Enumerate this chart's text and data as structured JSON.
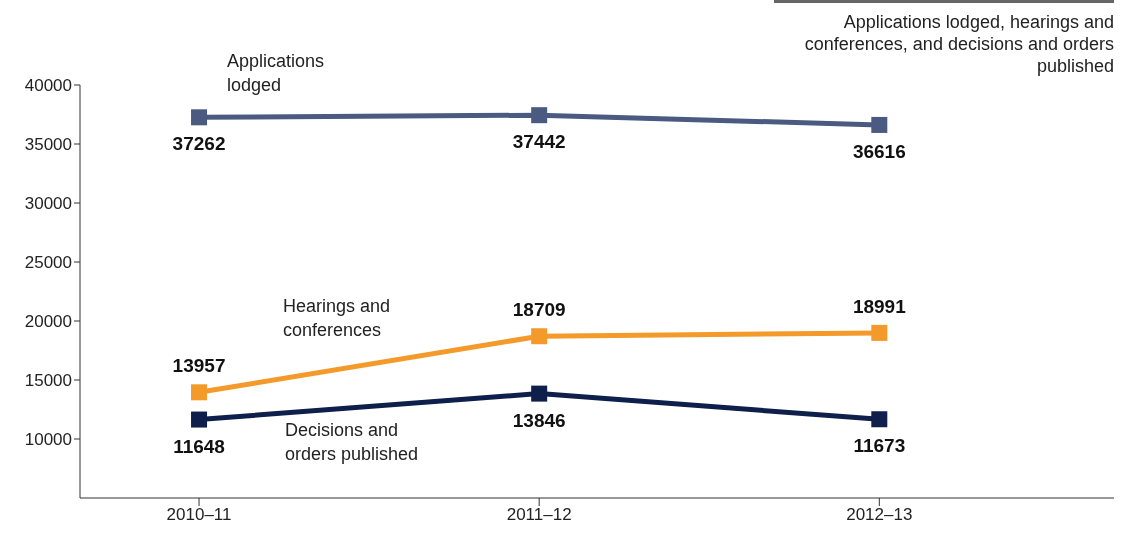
{
  "chart_data": {
    "type": "line",
    "title": "Applications lodged, hearings and conferences, and decisions and orders published",
    "categories": [
      "2010–11",
      "2011–12",
      "2012–13"
    ],
    "series": [
      {
        "name": "Applications lodged",
        "color": "#4a5a80",
        "values": [
          37262,
          37442,
          36616
        ]
      },
      {
        "name": "Hearings and conferences",
        "color": "#f39a2b",
        "values": [
          13957,
          18709,
          18991
        ]
      },
      {
        "name": "Decisions and orders published",
        "color": "#0d1f4a",
        "values": [
          11648,
          13846,
          11673
        ]
      }
    ],
    "ylim": [
      5000,
      40000
    ],
    "yticks": [
      10000,
      15000,
      20000,
      25000,
      30000,
      35000,
      40000
    ],
    "grid": false,
    "legend": false,
    "marker": "square",
    "line_style": "solid",
    "data_labels": true
  }
}
